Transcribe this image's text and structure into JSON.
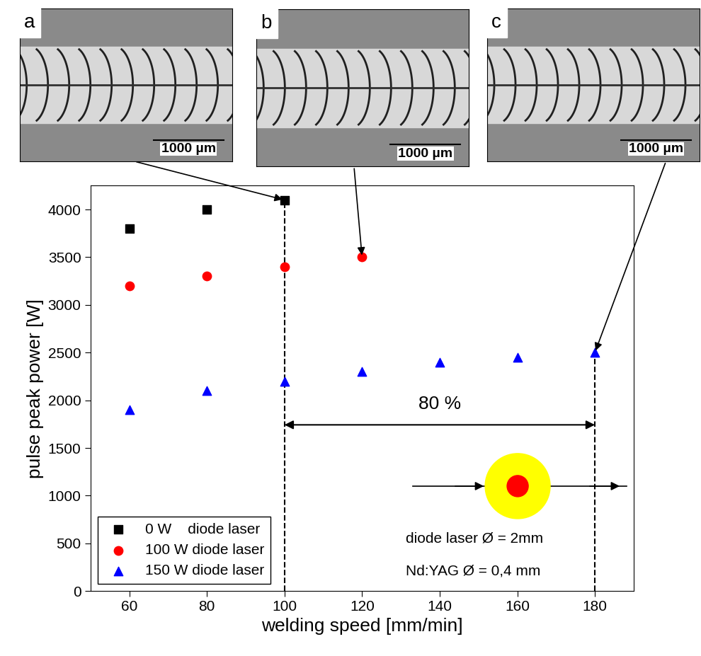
{
  "chart_data": {
    "type": "scatter",
    "xlabel": "welding speed [mm/min]",
    "ylabel": "pulse peak power [W]",
    "xlim": [
      50,
      190
    ],
    "xticks": [
      60,
      80,
      100,
      120,
      140,
      160,
      180
    ],
    "ylim": [
      0,
      4250
    ],
    "yticks": [
      0,
      500,
      1000,
      1500,
      2000,
      2500,
      3000,
      3500,
      4000
    ],
    "grid": false,
    "legend": "lower left",
    "series": [
      {
        "name": "0 W    diode laser",
        "color": "#000000",
        "marker": "square",
        "x": [
          60,
          80,
          100
        ],
        "values": [
          3800,
          4000,
          4100
        ]
      },
      {
        "name": "100 W diode laser",
        "color": "#ff0000",
        "marker": "circle",
        "x": [
          60,
          80,
          100,
          120
        ],
        "values": [
          3200,
          3300,
          3400,
          3500
        ]
      },
      {
        "name": "150 W diode laser",
        "color": "#0000ff",
        "marker": "triangle",
        "x": [
          60,
          80,
          100,
          120,
          140,
          160,
          180
        ],
        "values": [
          1900,
          2100,
          2200,
          2300,
          2400,
          2450,
          2500
        ]
      }
    ],
    "span": {
      "label": "80 %",
      "x": [
        100,
        180
      ]
    },
    "notes": [
      "diode laser Ø = 2mm",
      "Nd:YAG Ø = 0,4 mm"
    ],
    "insets": [
      {
        "label": "a",
        "scale_bar": "1000 µm",
        "x": 100,
        "y": 4100
      },
      {
        "label": "b",
        "scale_bar": "1000 µm",
        "x": 120,
        "y": 3500
      },
      {
        "label": "c",
        "scale_bar": "1000 µm",
        "x": 180,
        "y": 2500
      }
    ]
  }
}
